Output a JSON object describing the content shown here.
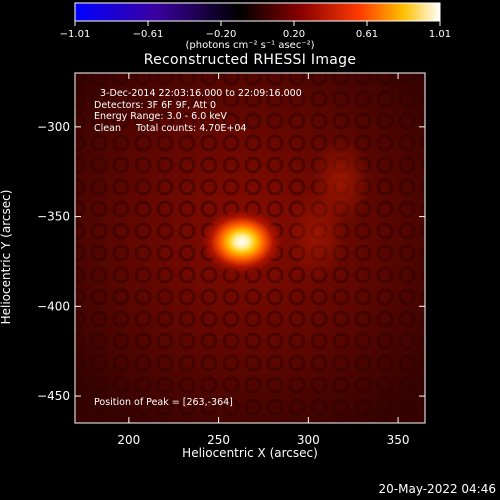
{
  "chart_data": {
    "type": "heatmap",
    "title": "Reconstructed RHESSI Image",
    "xlabel": "Heliocentric X (arcsec)",
    "ylabel": "Heliocentric Y (arcsec)",
    "xlim": [
      170,
      365
    ],
    "ylim": [
      -465,
      -270
    ],
    "xticks": [
      200,
      250,
      300,
      350
    ],
    "yticks": [
      -300,
      -350,
      -400,
      -450
    ],
    "colorbar": {
      "ticks": [
        "-1.01",
        "-0.61",
        "-0.20",
        "0.20",
        "0.61",
        "1.01"
      ],
      "range": [
        -1.01,
        1.01
      ],
      "units": "(photons cm⁻² s⁻¹ asec⁻²)",
      "colors": [
        "#0000ff",
        "#4000a0",
        "#000000",
        "#800000",
        "#ff4000",
        "#ffd000",
        "#ffffff"
      ]
    },
    "annotations": {
      "time_range": "  3-Dec-2014 22:03:16.000 to 22:09:16.000",
      "detectors": "Detectors: 3F 6F 9F, Att 0",
      "energy": "Energy Range: 3.0 - 6.0 keV",
      "method": "Clean     Total counts: 4.70E+04",
      "peak": "Position of Peak = [263,-364]"
    },
    "peak": {
      "x": 263,
      "y": -364,
      "value": 1.01
    },
    "sources": [
      {
        "x": 263,
        "y": -364,
        "value": 1.0
      },
      {
        "x": 318,
        "y": -330,
        "value": 0.3
      },
      {
        "x": 305,
        "y": -360,
        "value": 0.25
      }
    ],
    "grid": false,
    "legend": "none"
  },
  "footer": {
    "timestamp": "20-May-2022 04:46"
  }
}
